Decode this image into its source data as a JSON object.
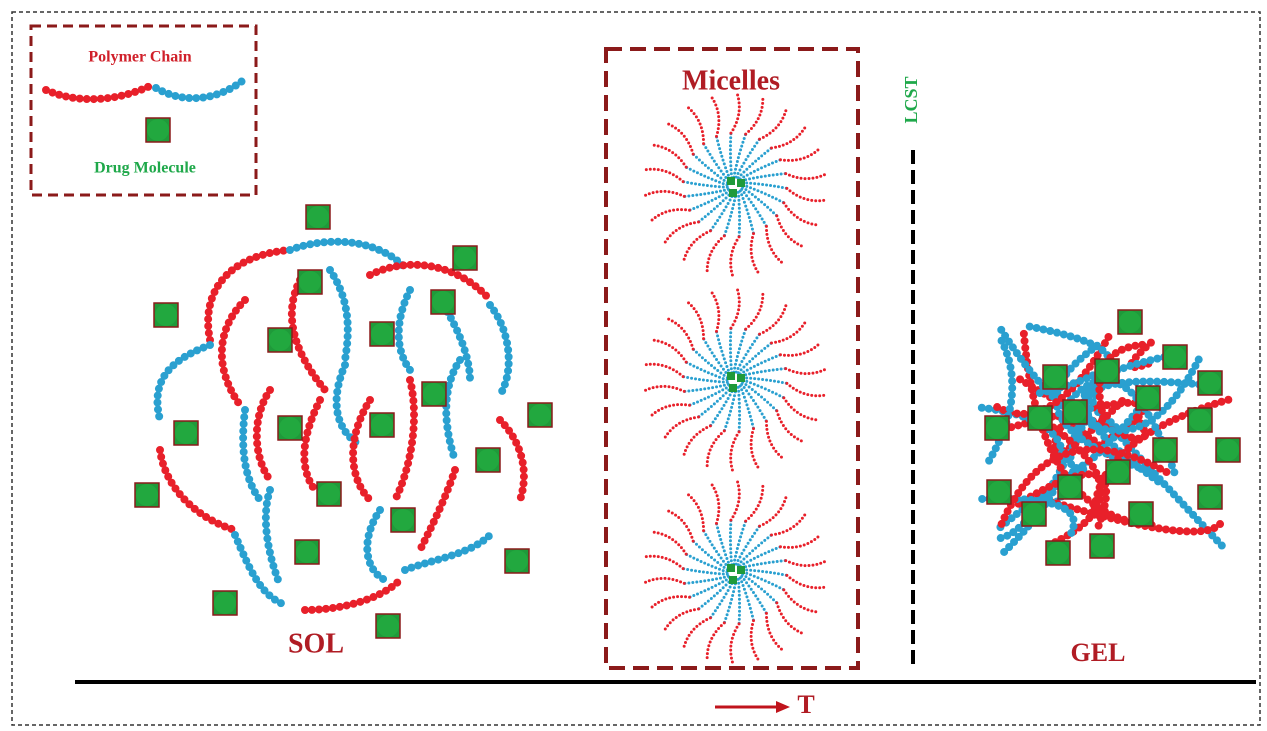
{
  "legend": {
    "polymer_chain": "Polymer Chain",
    "drug_molecule": "Drug Molecule"
  },
  "micelles_label": "Micelles",
  "lcst_label": "LCST",
  "sol_label": "SOL",
  "gel_label": "GEL",
  "axis_label": "T"
}
